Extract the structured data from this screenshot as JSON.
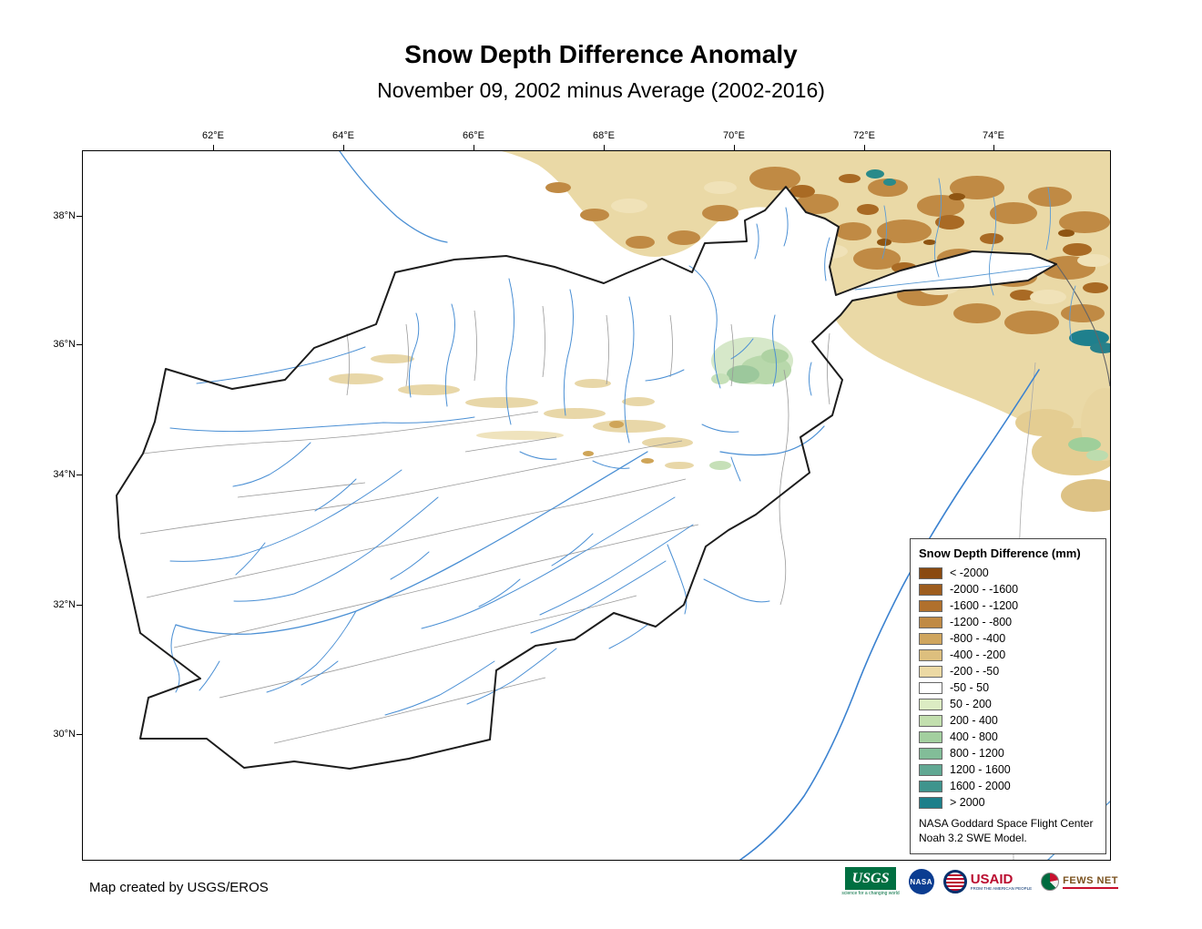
{
  "header": {
    "title": "Snow Depth Difference Anomaly",
    "subtitle": "November 09, 2002 minus Average (2002-2016)"
  },
  "map": {
    "lon_labels": [
      "62°E",
      "64°E",
      "66°E",
      "68°E",
      "70°E",
      "72°E",
      "74°E"
    ],
    "lat_labels": [
      "38°N",
      "36°N",
      "34°N",
      "32°N",
      "30°N"
    ]
  },
  "legend": {
    "title": "Snow Depth Difference (mm)",
    "items": [
      {
        "label": "< -2000",
        "color": "#8a4a10"
      },
      {
        "label": "-2000 - -1600",
        "color": "#9d5c1d"
      },
      {
        "label": "-1600 - -1200",
        "color": "#b0702c"
      },
      {
        "label": "-1200 - -800",
        "color": "#c08a44"
      },
      {
        "label": "-800 - -400",
        "color": "#cfa55e"
      },
      {
        "label": "-400 - -200",
        "color": "#ddbf7e"
      },
      {
        "label": "-200 - -50",
        "color": "#ecd9a4"
      },
      {
        "label": "-50 - 50",
        "color": "#ffffff"
      },
      {
        "label": "50 - 200",
        "color": "#dcecc3"
      },
      {
        "label": "200 - 400",
        "color": "#c2dfae"
      },
      {
        "label": "400 - 800",
        "color": "#a3cf9f"
      },
      {
        "label": "800 - 1200",
        "color": "#82bd98"
      },
      {
        "label": "1200 - 1600",
        "color": "#61a893"
      },
      {
        "label": "1600 - 2000",
        "color": "#3f948d"
      },
      {
        "label": "> 2000",
        "color": "#1d7f8a"
      }
    ],
    "source_line1": "NASA Goddard Space Flight Center",
    "source_line2": "Noah 3.2 SWE Model.",
    "accent_border": "#444444"
  },
  "footer": {
    "credit": "Map created by USGS/EROS"
  },
  "logos": {
    "usgs": {
      "text": "USGS",
      "tagline": "science for a changing world"
    },
    "nasa": {
      "text": "NASA"
    },
    "usaid": {
      "text": "USAID",
      "tagline": "FROM THE AMERICAN PEOPLE"
    },
    "fewsnet": {
      "text": "FEWS NET"
    }
  },
  "map_colors": {
    "country_border": "#1c1c1c",
    "river_blue": "#4a8fd4",
    "watershed_gray": "#999999",
    "terrain_tan_base": "#ead9a6"
  }
}
